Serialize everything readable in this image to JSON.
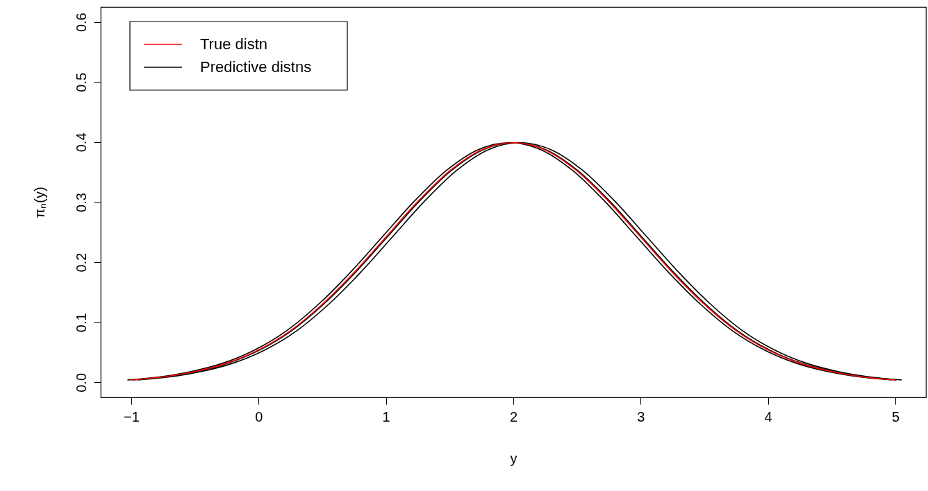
{
  "chart_data": {
    "type": "line",
    "xlabel": "y",
    "ylabel": "πₙ(y)",
    "x": [
      -1,
      -0.75,
      -0.5,
      -0.25,
      0,
      0.25,
      0.5,
      0.75,
      1,
      1.25,
      1.5,
      1.75,
      2,
      2.25,
      2.5,
      2.75,
      3,
      3.25,
      3.5,
      3.75,
      4,
      4.25,
      4.5,
      4.75,
      5
    ],
    "series": [
      {
        "name": "True distn",
        "color": "#ff0000",
        "values": [
          0.004,
          0.009,
          0.018,
          0.032,
          0.054,
          0.086,
          0.13,
          0.183,
          0.242,
          0.301,
          0.352,
          0.387,
          0.399,
          0.387,
          0.352,
          0.301,
          0.242,
          0.183,
          0.13,
          0.086,
          0.054,
          0.032,
          0.018,
          0.009,
          0.004
        ]
      },
      {
        "name": "Predictive distns",
        "color": "#000000",
        "x": [
          -0.95,
          -0.7,
          -0.45,
          -0.2,
          0.05,
          0.3,
          0.55,
          0.8,
          1.05,
          1.3,
          1.55,
          1.8,
          2.05,
          2.3,
          2.55,
          2.8,
          3.05,
          3.3,
          3.55,
          3.8,
          4.05,
          4.3,
          4.55,
          4.8,
          5.05
        ],
        "values": [
          0.004,
          0.009,
          0.018,
          0.032,
          0.054,
          0.086,
          0.13,
          0.183,
          0.242,
          0.301,
          0.352,
          0.387,
          0.399,
          0.387,
          0.352,
          0.301,
          0.242,
          0.183,
          0.13,
          0.086,
          0.054,
          0.032,
          0.018,
          0.009,
          0.004
        ]
      },
      {
        "color": "#000000",
        "x": [
          -1.03,
          -0.78,
          -0.53,
          -0.28,
          -0.03,
          0.22,
          0.47,
          0.72,
          0.97,
          1.22,
          1.47,
          1.72,
          1.97,
          2.22,
          2.47,
          2.72,
          2.97,
          3.22,
          3.47,
          3.72,
          3.97,
          4.22,
          4.47,
          4.72,
          4.97
        ],
        "values": [
          0.004,
          0.009,
          0.018,
          0.032,
          0.054,
          0.086,
          0.13,
          0.183,
          0.242,
          0.301,
          0.352,
          0.387,
          0.399,
          0.387,
          0.352,
          0.301,
          0.242,
          0.183,
          0.13,
          0.086,
          0.054,
          0.032,
          0.018,
          0.009,
          0.004
        ]
      },
      {
        "color": "#000000",
        "x": [
          -0.99,
          -0.74,
          -0.49,
          -0.24,
          0.01,
          0.26,
          0.51,
          0.76,
          1.01,
          1.26,
          1.51,
          1.76,
          2.01,
          2.26,
          2.51,
          2.76,
          3.01,
          3.26,
          3.51,
          3.76,
          4.01,
          4.26,
          4.51,
          4.76,
          5.01
        ],
        "values": [
          0.004,
          0.009,
          0.018,
          0.032,
          0.054,
          0.086,
          0.13,
          0.183,
          0.242,
          0.301,
          0.352,
          0.387,
          0.399,
          0.387,
          0.352,
          0.301,
          0.242,
          0.183,
          0.13,
          0.086,
          0.054,
          0.032,
          0.018,
          0.009,
          0.004
        ]
      }
    ],
    "xlim": [
      -1.24,
      5.24
    ],
    "ylim": [
      -0.025,
      0.625
    ],
    "xticks": [
      {
        "value": -1,
        "label": "−1"
      },
      0,
      1,
      2,
      3,
      4,
      5
    ],
    "yticks": [
      {
        "value": 0,
        "label": "0.0"
      },
      0.1,
      0.2,
      0.3,
      0.4,
      0.5,
      0.6
    ],
    "grid": false,
    "legend": "top left",
    "marker": "none",
    "line_style": "solid"
  }
}
